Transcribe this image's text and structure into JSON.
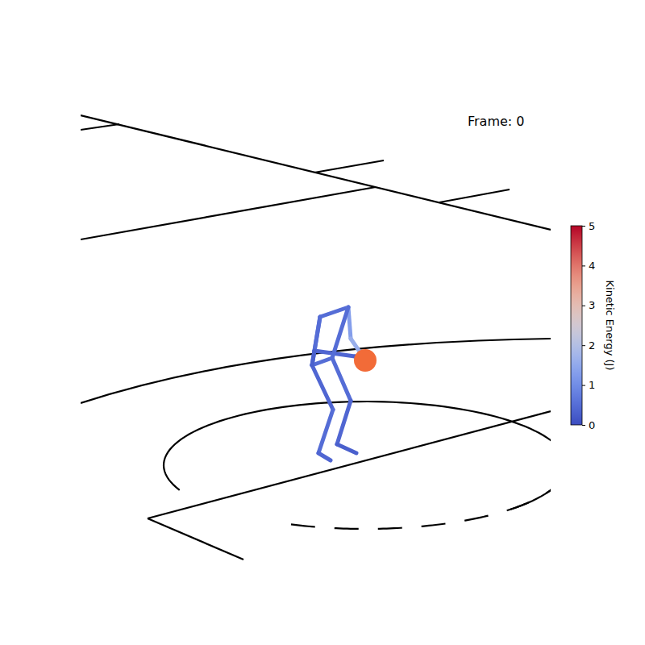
{
  "chart_data": {
    "type": "skeleton",
    "annotations": [
      "Frame: 0"
    ],
    "values": [
      0.5,
      0.6,
      0.4,
      0.5,
      1.3,
      1.6,
      0.5,
      0.5,
      0.4,
      0.5,
      0.5,
      0.4,
      0.4,
      0.3,
      0.3,
      0.3
    ],
    "colorbar": {
      "label": "Kinetic Energy (J)",
      "range": [
        0,
        5
      ],
      "ticks": [
        0,
        1,
        2,
        3,
        4,
        5
      ]
    }
  }
}
